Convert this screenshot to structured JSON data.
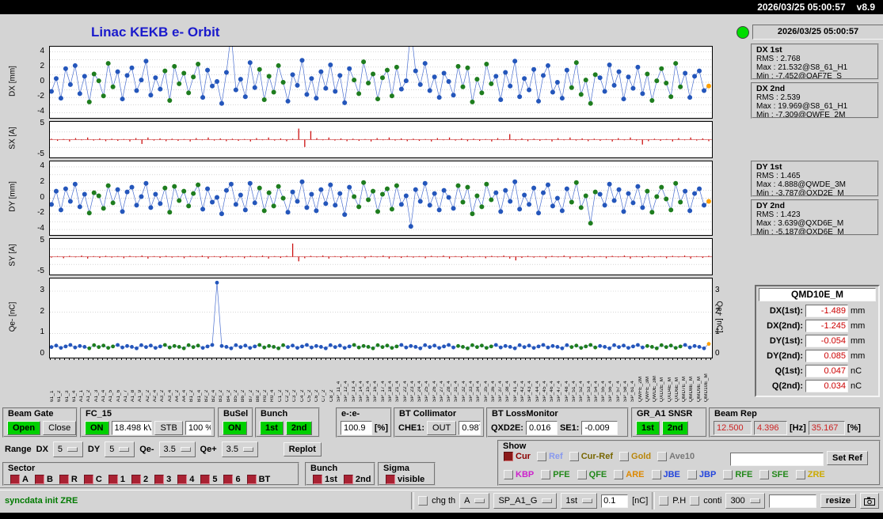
{
  "topbar": {
    "clock": "2026/03/25 05:00:57",
    "version": "v8.9"
  },
  "title": "Linac KEKB e- Orbit",
  "right_panel": {
    "timestamp": "2026/03/25 05:00:57"
  },
  "stats": [
    {
      "title": "DX 1st",
      "rows": [
        "RMS : 2.768",
        "Max : 21.532@S8_61_H1",
        "Min : -7.452@QAF7E_S"
      ]
    },
    {
      "title": "DX 2nd",
      "rows": [
        "RMS : 2.539",
        "Max : 19.969@S8_61_H1",
        "Min : -7.309@QWFE_2M"
      ]
    },
    {
      "title": "DY 1st",
      "rows": [
        "RMS : 1.465",
        "Max : 4.888@QWDE_3M",
        "Min : -3.787@QXD2E_M"
      ]
    },
    {
      "title": "DY 2nd",
      "rows": [
        "RMS : 1.423",
        "Max : 3.639@QXD6E_M",
        "Min : -5.187@QXD6E_M"
      ]
    }
  ],
  "qmd": {
    "title": "QMD10E_M",
    "rows": [
      {
        "label": "DX(1st):",
        "value": "-1.489",
        "unit": "mm"
      },
      {
        "label": "DX(2nd):",
        "value": "-1.245",
        "unit": "mm"
      },
      {
        "label": "DY(1st):",
        "value": "-0.054",
        "unit": "mm"
      },
      {
        "label": "DY(2nd):",
        "value": "0.085",
        "unit": "mm"
      },
      {
        "label": "Q(1st):",
        "value": "0.047",
        "unit": "nC"
      },
      {
        "label": "Q(2nd):",
        "value": "0.034",
        "unit": "nC"
      }
    ]
  },
  "beam_gate": {
    "title": "Beam Gate",
    "open": "Open",
    "close": "Close"
  },
  "fc15": {
    "title": "FC_15",
    "on": "ON",
    "kv": "18.498 kV",
    "stb": "STB",
    "pct": "100 %"
  },
  "busel": {
    "title": "BuSel",
    "on": "ON"
  },
  "bunch_top": {
    "title": "Bunch",
    "first": "1st",
    "second": "2nd"
  },
  "ee": {
    "title": "e-:e-",
    "value": "100.9",
    "unit": "[%]"
  },
  "bt_collimator": {
    "title": "BT Collimator",
    "che1": "CHE1:",
    "out": "OUT",
    "value": "0.987"
  },
  "bt_lossmonitor": {
    "title": "BT LossMonitor",
    "qxd2e_label": "QXD2E:",
    "qxd2e": "0.016",
    "se1_label": "SE1:",
    "se1": "-0.009"
  },
  "gr_snsr": {
    "title": "GR_A1 SNSR",
    "first": "1st",
    "second": "2nd"
  },
  "beam_rep": {
    "title": "Beam Rep",
    "v1": "12.500",
    "v2": "4.396",
    "hz": "[Hz]",
    "v3": "35.167",
    "pct": "[%]"
  },
  "range": {
    "label": "Range",
    "dx_label": "DX",
    "dx": "5",
    "dy_label": "DY",
    "dy": "5",
    "qem_label": "Qe-",
    "qem": "3.5",
    "qep_label": "Qe+",
    "qep": "3.5",
    "replot": "Replot"
  },
  "show": {
    "title": "Show",
    "row1": [
      {
        "label": "Cur",
        "color": "#8b0000",
        "checked": true
      },
      {
        "label": "Ref",
        "color": "#8899ee"
      },
      {
        "label": "Cur-Ref",
        "color": "#776600"
      },
      {
        "label": "Gold",
        "color": "#b8860b"
      },
      {
        "label": "Ave10",
        "color": "#777777"
      }
    ],
    "set_ref": "Set Ref",
    "row2": [
      {
        "label": "KBP",
        "color": "#cc22cc"
      },
      {
        "label": "PFE",
        "color": "#22881a"
      },
      {
        "label": "QFE",
        "color": "#22881a"
      },
      {
        "label": "ARE",
        "color": "#dd8800"
      },
      {
        "label": "JBE",
        "color": "#2244dd"
      },
      {
        "label": "JBP",
        "color": "#2244dd"
      },
      {
        "label": "RFE",
        "color": "#22881a"
      },
      {
        "label": "SFE",
        "color": "#22881a"
      },
      {
        "label": "ZRE",
        "color": "#ccaa00"
      }
    ]
  },
  "sector": {
    "title": "Sector",
    "items": [
      "A",
      "B",
      "R",
      "C",
      "1",
      "2",
      "3",
      "4",
      "5",
      "6",
      "BT"
    ]
  },
  "bunch_bottom": {
    "title": "Bunch",
    "first": "1st",
    "second": "2nd"
  },
  "sigma": {
    "title": "Sigma",
    "visible": "visible"
  },
  "statusbar": {
    "message": "syncdata init ZRE",
    "chg_th": "chg th",
    "sel_a": "A",
    "sel_sp": "SP_A1_G",
    "sel_1st": "1st",
    "thresh": "0.1",
    "nc": "[nC]",
    "ph": "P.H",
    "conti": "conti",
    "sel_300": "300",
    "resize": "resize"
  },
  "colors": {
    "bg": "#d4d4d4",
    "title_blue": "#1a1acc",
    "green": "#00d000",
    "led_green": "#00dd00",
    "line_blue": "#4a6fd0",
    "point_blue": "#2456bb",
    "point_green": "#1e7d1e",
    "point_orange": "#ffa000",
    "bar_red": "#cc1111",
    "value_red": "#cc0000",
    "status_green": "#007a00",
    "checkbox_red": "#aa2233"
  },
  "charts": {
    "point_pattern": "bbbbbbbbggggggbbbbbbbbbbggggggggbbbbbbbbbbbbggggggbbbbbbbbbbbbbbggggggggggbbbbbbbbbbbbggggggggbbbbbbbbbbbbbbbbggggggbbbbbbbbbbggggggggbbbbbo",
    "dx": {
      "axis": "DX [mm]",
      "ymin": -4.7,
      "ymax": 4.7,
      "grid": [
        4,
        3,
        2,
        1,
        0,
        -1,
        -2,
        -3,
        -4
      ],
      "ticks": [
        {
          "v": 4,
          "label": "4"
        },
        {
          "v": 2,
          "label": "2"
        },
        {
          "v": 0,
          "label": "0"
        },
        {
          "v": -2,
          "label": "-2"
        },
        {
          "v": -4,
          "label": "-4"
        }
      ],
      "values": [
        -1.2,
        0.5,
        -2.1,
        1.8,
        -0.3,
        2.2,
        -1.5,
        0.8,
        -2.6,
        1.1,
        0.2,
        -1.8,
        2.5,
        -0.6,
        1.4,
        -2.2,
        0.9,
        1.9,
        -1.1,
        0.3,
        2.8,
        -1.7,
        0.6,
        -0.9,
        1.5,
        -2.4,
        2.1,
        -0.2,
        1.2,
        -1.4,
        0.7,
        2.4,
        -2.0,
        1.6,
        -0.5,
        0.1,
        -2.8,
        1.3,
        6.5,
        -1.0,
        0.4,
        -1.9,
        2.6,
        -0.7,
        1.7,
        -2.3,
        0.8,
        -1.3,
        2.2,
        0.0,
        -2.5,
        1.0,
        -0.4,
        2.9,
        -1.6,
        0.5,
        -2.1,
        1.4,
        -0.8,
        2.3,
        -1.2,
        0.9,
        -2.7,
        1.8,
        0.3,
        -1.5,
        2.7,
        -0.1,
        1.1,
        -2.2,
        0.6,
        1.6,
        -1.8,
        2.0,
        -0.9,
        0.2,
        7.2,
        1.5,
        -0.3,
        2.5,
        -1.1,
        0.7,
        -2.0,
        1.2,
        0.1,
        -1.7,
        2.1,
        -0.6,
        1.9,
        -2.6,
        0.4,
        -1.4,
        2.4,
        -0.2,
        0.8,
        -2.3,
        1.3,
        -0.5,
        2.8,
        -1.9,
        0.5,
        -1.0,
        1.7,
        -2.5,
        0.9,
        2.2,
        -1.3,
        0.0,
        -2.1,
        1.6,
        -0.7,
        2.6,
        -1.6,
        0.3,
        -2.8,
        1.0,
        0.6,
        -1.2,
        2.3,
        -0.4,
        1.4,
        -2.2,
        0.7,
        -0.8,
        2.0,
        -1.5,
        1.1,
        -2.4,
        0.2,
        1.8,
        -0.1,
        -1.9,
        2.5,
        -0.6,
        1.2,
        -2.0,
        0.8,
        1.5,
        -1.1,
        -0.5
      ]
    },
    "sx": {
      "axis": "SX [A]",
      "ymin": -5.8,
      "ymax": 5.8,
      "grid": [
        2.5,
        0,
        -2.5
      ],
      "ticks": [
        {
          "v": 5,
          "label": "5"
        },
        {
          "v": -5,
          "label": "-5"
        }
      ],
      "values": [
        0.3,
        -0.4,
        0.2,
        -0.6,
        0.5,
        -0.2,
        0.7,
        -0.3,
        0.4,
        -0.5,
        0.3,
        -0.4,
        0.2,
        -0.6,
        0.5,
        -1.4,
        0.7,
        -0.3,
        0.4,
        -0.5,
        0.3,
        -0.4,
        0.2,
        -0.6,
        0.5,
        -0.2,
        0.7,
        -0.3,
        0.4,
        -0.5,
        0.3,
        -0.4,
        0.2,
        -0.6,
        0.5,
        -0.2,
        0.7,
        -0.3,
        0.4,
        -0.5,
        0.3,
        3.6,
        -2.4,
        2.8,
        0.5,
        -0.2,
        0.7,
        -0.3,
        0.4,
        -0.5,
        0.3,
        -0.4,
        0.2,
        -0.6,
        0.5,
        -0.2,
        0.7,
        -0.3,
        0.4,
        -0.5,
        0.3,
        -0.4,
        0.2,
        -0.6,
        0.5,
        -0.2,
        0.7,
        -0.3,
        0.4,
        -0.5,
        0.3,
        -0.4,
        0.2,
        -0.6,
        0.5,
        -0.2,
        1.8,
        -0.3,
        0.4,
        -0.5,
        0.3,
        -0.4,
        0.2,
        -0.6,
        0.5,
        -0.2,
        0.7,
        -0.3,
        0.4,
        -0.5,
        0.3,
        -0.4,
        0.2,
        -0.6,
        0.5,
        -0.2,
        0.7,
        -0.3,
        -1.6,
        -0.5,
        0.3,
        -0.4,
        0.2,
        -0.6,
        0.5,
        -0.2,
        0.7,
        -0.3,
        0.4,
        -0.5
      ]
    },
    "dy": {
      "axis": "DY [mm]",
      "ymin": -4.7,
      "ymax": 4.7,
      "grid": [
        4,
        3,
        2,
        1,
        0,
        -1,
        -2,
        -3,
        -4
      ],
      "ticks": [
        {
          "v": 4,
          "label": "4"
        },
        {
          "v": 2,
          "label": "2"
        },
        {
          "v": 0,
          "label": "0"
        },
        {
          "v": -2,
          "label": "-2"
        },
        {
          "v": -4,
          "label": "-4"
        }
      ],
      "values": [
        -0.8,
        0.9,
        -1.5,
        1.2,
        -0.4,
        1.8,
        -1.1,
        0.5,
        -1.9,
        0.7,
        0.3,
        -1.3,
        1.6,
        -0.6,
        1.1,
        -1.7,
        0.8,
        1.4,
        -0.9,
        0.2,
        1.9,
        -1.2,
        0.5,
        -0.7,
        1.3,
        -1.8,
        1.5,
        -0.3,
        0.9,
        -1.0,
        0.6,
        1.7,
        -1.4,
        1.2,
        -0.5,
        0.1,
        -2.0,
        1.0,
        1.8,
        -0.8,
        0.4,
        -1.5,
        1.9,
        -0.6,
        1.3,
        -1.6,
        0.7,
        -1.0,
        1.5,
        0.0,
        -1.8,
        0.8,
        -0.4,
        2.1,
        -1.2,
        0.5,
        -1.6,
        1.1,
        -0.7,
        1.7,
        -0.9,
        0.6,
        -2.1,
        1.4,
        0.2,
        -1.1,
        2.0,
        -0.2,
        0.9,
        -1.7,
        0.5,
        1.2,
        -1.4,
        1.6,
        -0.8,
        0.3,
        -3.6,
        1.1,
        -0.4,
        1.9,
        -0.9,
        0.6,
        -1.5,
        1.0,
        0.1,
        -1.3,
        1.6,
        -0.5,
        1.4,
        -2.0,
        0.3,
        -1.1,
        1.8,
        -0.2,
        0.7,
        -1.7,
        1.0,
        -0.4,
        2.1,
        -1.4,
        0.4,
        -0.8,
        1.3,
        -1.9,
        0.7,
        1.7,
        -1.0,
        0.0,
        -1.6,
        1.2,
        -0.5,
        2.0,
        -1.2,
        0.3,
        -3.2,
        0.8,
        0.5,
        -0.9,
        1.8,
        -0.3,
        1.1,
        -1.7,
        0.6,
        -0.6,
        1.5,
        -1.2,
        0.9,
        -1.8,
        0.2,
        1.4,
        -0.1,
        -1.5,
        1.9,
        -0.5,
        0.9,
        -1.6,
        0.6,
        1.2,
        -0.9,
        -0.4
      ]
    },
    "sy": {
      "axis": "SY [A]",
      "ymin": -5.8,
      "ymax": 5.8,
      "grid": [
        2.5,
        0,
        -2.5
      ],
      "ticks": [
        {
          "v": 5,
          "label": "5"
        },
        {
          "v": -5,
          "label": "-5"
        }
      ],
      "values": [
        -0.3,
        0.2,
        -0.5,
        0.3,
        -0.2,
        0.4,
        -0.6,
        0.2,
        -0.4,
        0.3,
        -0.3,
        0.2,
        -0.5,
        0.3,
        -0.2,
        0.4,
        -0.6,
        0.2,
        -0.4,
        0.3,
        -0.3,
        0.2,
        -0.5,
        0.3,
        -0.2,
        0.4,
        -0.6,
        0.2,
        -0.4,
        0.3,
        -0.3,
        0.2,
        -0.5,
        0.3,
        -0.2,
        0.4,
        -0.6,
        0.2,
        -0.4,
        0.3,
        4.3,
        -1.5,
        -0.5,
        0.3,
        -0.2,
        0.4,
        -0.6,
        0.2,
        -0.4,
        0.3,
        -0.3,
        0.2,
        -0.5,
        0.3,
        -0.2,
        0.4,
        -0.6,
        0.2,
        -0.4,
        0.3,
        -0.3,
        0.2,
        -0.5,
        0.3,
        -0.2,
        0.4,
        -0.6,
        0.2,
        -0.4,
        0.3,
        -0.3,
        0.2,
        -0.5,
        0.3,
        -0.2,
        0.4,
        -0.6,
        -1.2,
        -0.4,
        0.3,
        -0.3,
        0.2,
        -0.5,
        0.3,
        -0.2,
        0.4,
        -0.6,
        0.2,
        -0.4,
        0.3,
        -0.3,
        0.2,
        -0.5,
        0.3,
        -0.2,
        0.4,
        -0.6,
        0.2,
        -0.4,
        0.3,
        -0.3,
        0.2,
        -0.5,
        0.3,
        -0.2,
        0.4,
        -0.6,
        0.2,
        -0.4,
        0.3
      ]
    },
    "qe": {
      "axis_left": "Qe- [nC]",
      "axis_right": "Qe+ [nC]",
      "ymin": -0.15,
      "ymax": 3.6,
      "r": 2.4,
      "grid": [
        3,
        2,
        1
      ],
      "ticks": [
        {
          "v": 3,
          "label": "3"
        },
        {
          "v": 2,
          "label": "2"
        },
        {
          "v": 1,
          "label": "1"
        },
        {
          "v": 0,
          "label": "0"
        }
      ],
      "values": [
        0.35,
        0.42,
        0.31,
        0.38,
        0.45,
        0.33,
        0.4,
        0.36,
        0.29,
        0.44,
        0.35,
        0.42,
        0.31,
        0.38,
        0.45,
        0.33,
        0.4,
        0.36,
        0.29,
        0.44,
        0.35,
        0.42,
        0.31,
        0.38,
        0.45,
        0.33,
        0.4,
        0.36,
        0.29,
        0.44,
        0.35,
        0.42,
        0.31,
        0.38,
        0.45,
        3.4,
        0.4,
        0.36,
        0.29,
        0.44,
        0.35,
        0.42,
        0.31,
        0.38,
        0.45,
        0.33,
        0.4,
        0.36,
        0.29,
        0.44,
        0.35,
        0.42,
        0.31,
        0.38,
        0.45,
        0.33,
        0.4,
        0.36,
        0.29,
        0.44,
        0.35,
        0.42,
        0.31,
        0.38,
        0.45,
        0.33,
        0.4,
        0.36,
        0.29,
        0.44,
        0.35,
        0.42,
        0.31,
        0.38,
        0.45,
        0.33,
        0.4,
        0.36,
        0.29,
        0.44,
        0.35,
        0.42,
        0.31,
        0.38,
        0.45,
        0.33,
        0.4,
        0.36,
        0.29,
        0.44,
        0.35,
        0.42,
        0.31,
        0.38,
        0.45,
        0.33,
        0.4,
        0.36,
        0.29,
        0.44,
        0.35,
        0.42,
        0.31,
        0.38,
        0.45,
        0.33,
        0.4,
        0.36,
        0.29,
        0.44,
        0.35,
        0.42,
        0.31,
        0.38,
        0.45,
        0.33,
        0.4,
        0.36,
        0.29,
        0.44,
        0.35,
        0.42,
        0.31,
        0.38,
        0.45,
        0.33,
        0.4,
        0.36,
        0.29,
        0.44,
        0.35,
        0.42,
        0.31,
        0.38,
        0.45,
        0.33,
        0.4,
        0.36,
        0.29,
        0.5
      ]
    }
  },
  "xaxis_labels": [
    "61_1",
    "61_2",
    "61_3",
    "61_4",
    "A1_1",
    "A1_2",
    "A1_3",
    "A1_4",
    "A1_5",
    "A1_6",
    "A1_7",
    "A1_8",
    "A1_9",
    "A2_2",
    "A2_4",
    "A3_2",
    "A3_4",
    "A4_2",
    "A4_4",
    "B1_2",
    "B1_4",
    "B2_2",
    "B2_4",
    "B3_2",
    "B4_2",
    "B5_2",
    "B6_2",
    "B7_2",
    "B8_2",
    "R0_2",
    "R0_4",
    "C1_2",
    "C2_2",
    "C3_2",
    "C4_2",
    "C5_2",
    "C6_2",
    "C7_2",
    "C8_2",
    "SP_11_4",
    "SP_12_4",
    "SP_13_4",
    "SP_14_4",
    "SP_15_4",
    "SP_16_4",
    "SP_17_4",
    "SP_18_4",
    "SP_21_4",
    "SP_22_4",
    "SP_23_4",
    "SP_24_4",
    "SP_25_4",
    "SP_26_4",
    "SP_27_4",
    "SP_28_4",
    "SP_31_4",
    "SP_32_4",
    "SP_33_4",
    "SP_34_4",
    "SP_35_4",
    "SP_36_4",
    "SP_37_4",
    "SP_38_4",
    "SP_41_4",
    "SP_42_4",
    "SP_43_4",
    "SP_44_4",
    "SP_45_4",
    "SP_46_4",
    "SP_47_4",
    "SP_48_4",
    "SP_51_4",
    "SP_52_4",
    "SP_53_4",
    "SP_54_4",
    "SP_55_4",
    "SP_56_4",
    "SP_57_4",
    "SP_58_4",
    "SP_61_4",
    "QWFE_2M",
    "QWFE_3M",
    "QWDE_3M",
    "QXD2E_M",
    "QXD4E_M",
    "QXD6E_M",
    "QMD7E_M",
    "QMD8E_M",
    "QMD9E_M",
    "QMD10E_M"
  ]
}
